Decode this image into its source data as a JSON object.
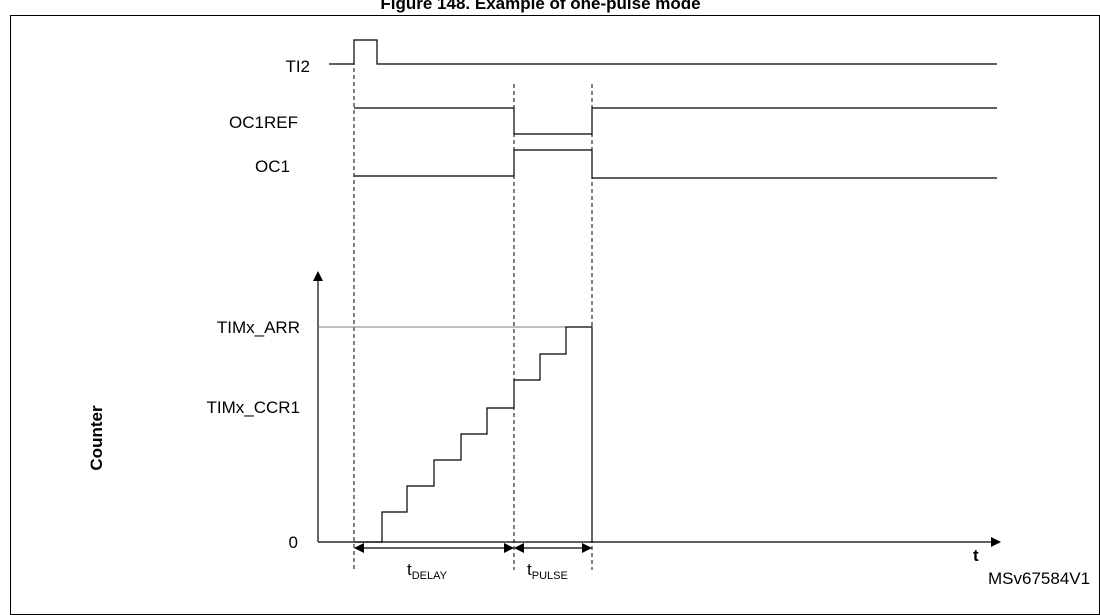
{
  "figure": {
    "title": "Figure 148. Example of one-pulse mode",
    "ref_code": "MSv67584V1"
  },
  "signals": {
    "ti2": "TI2",
    "oc1ref": "OC1REF",
    "oc1": "OC1"
  },
  "counter_axis": {
    "label": "Counter",
    "arr_label": "TIMx_ARR",
    "ccr1_label": "TIMx_CCR1",
    "zero_label": "0",
    "time_label": "t"
  },
  "intervals": {
    "delay": {
      "main": "t",
      "sub": "DELAY"
    },
    "pulse": {
      "main": "t",
      "sub": "PULSE"
    }
  },
  "colors": {
    "line": "#000000",
    "arr_reference": "#808080"
  }
}
